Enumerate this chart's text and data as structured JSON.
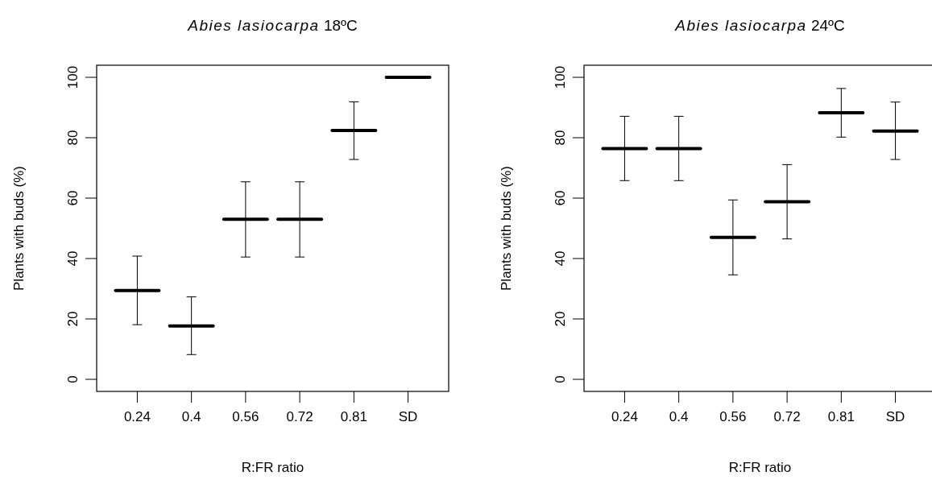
{
  "chart_data": [
    {
      "type": "box",
      "title": "Abies lasiocarpa 18ºC",
      "xlabel": "R:FR ratio",
      "ylabel": "Plants with buds (%)",
      "categories": [
        "0.24",
        "0.4",
        "0.56",
        "0.72",
        "0.81",
        "SD"
      ],
      "ylim": [
        -4,
        104
      ],
      "yticks": [
        0,
        20,
        40,
        60,
        80,
        100
      ],
      "color": "#000000",
      "boxes": [
        {
          "low": 18.1,
          "q1": 29.4,
          "median": 29.4,
          "q3": 29.4,
          "high": 40.8
        },
        {
          "low": 8.2,
          "q1": 17.7,
          "median": 17.7,
          "q3": 17.7,
          "high": 27.3
        },
        {
          "low": 40.5,
          "q1": 53.0,
          "median": 53.0,
          "q3": 53.0,
          "high": 65.4
        },
        {
          "low": 40.5,
          "q1": 53.0,
          "median": 53.0,
          "q3": 53.0,
          "high": 65.4
        },
        {
          "low": 72.8,
          "q1": 82.4,
          "median": 82.4,
          "q3": 82.4,
          "high": 91.9
        },
        {
          "low": 100,
          "q1": 100,
          "median": 100,
          "q3": 100,
          "high": 100
        }
      ]
    },
    {
      "type": "box",
      "title": "Abies lasiocarpa 24ºC",
      "xlabel": "R:FR ratio",
      "ylabel": "Plants with buds (%)",
      "categories": [
        "0.24",
        "0.4",
        "0.56",
        "0.72",
        "0.81",
        "SD"
      ],
      "ylim": [
        -4,
        104
      ],
      "yticks": [
        0,
        20,
        40,
        60,
        80,
        100
      ],
      "color": "#000000",
      "boxes": [
        {
          "low": 65.8,
          "q1": 76.4,
          "median": 76.4,
          "q3": 76.4,
          "high": 87.1
        },
        {
          "low": 65.8,
          "q1": 76.4,
          "median": 76.4,
          "q3": 76.4,
          "high": 87.1
        },
        {
          "low": 34.6,
          "q1": 47.0,
          "median": 47.0,
          "q3": 47.0,
          "high": 59.4
        },
        {
          "low": 46.5,
          "q1": 58.8,
          "median": 58.8,
          "q3": 58.8,
          "high": 71.1
        },
        {
          "low": 80.2,
          "q1": 88.3,
          "median": 88.3,
          "q3": 88.3,
          "high": 96.3
        },
        {
          "low": 72.8,
          "q1": 82.2,
          "median": 82.2,
          "q3": 82.2,
          "high": 91.8
        }
      ]
    }
  ]
}
